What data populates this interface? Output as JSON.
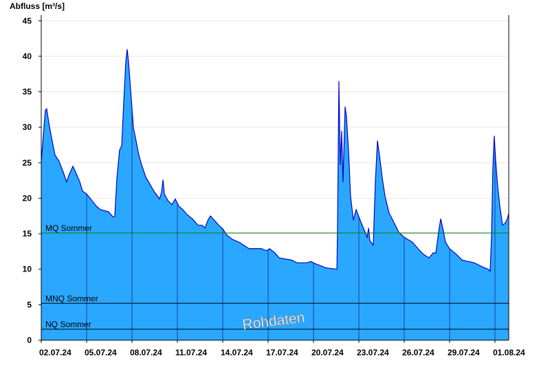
{
  "chart_data": {
    "type": "area",
    "y_label": "Abfluss [m³/s]",
    "watermark": "Rohdaten",
    "color": "#2aa8ff",
    "line_color": "#0000cc",
    "grid": true,
    "xlim": [
      0,
      30.91
    ],
    "xticks": [
      {
        "value": 0,
        "label": "02.07.24"
      },
      {
        "value": 3,
        "label": "05.07.24"
      },
      {
        "value": 6,
        "label": "08.07.24"
      },
      {
        "value": 9,
        "label": "11.07.24"
      },
      {
        "value": 12,
        "label": "14.07.24"
      },
      {
        "value": 15,
        "label": "17.07.24"
      },
      {
        "value": 18,
        "label": "20.07.24"
      },
      {
        "value": 21,
        "label": "23.07.24"
      },
      {
        "value": 24,
        "label": "26.07.24"
      },
      {
        "value": 27,
        "label": "29.07.24"
      },
      {
        "value": 30,
        "label": "01.08.24"
      }
    ],
    "ylim": [
      0,
      45.8
    ],
    "yticks": [
      0,
      5,
      10,
      15,
      20,
      25,
      30,
      35,
      40,
      45
    ],
    "reference_lines": [
      {
        "label": "MQ Sommer",
        "value": 15.1,
        "color": "#008000"
      },
      {
        "label": "MNQ Sommer",
        "value": 5.2,
        "color": "#000000"
      },
      {
        "label": "NQ Sommer",
        "value": 1.55,
        "color": "#000000"
      }
    ],
    "x": [
      0,
      0.09,
      0.27,
      0.36,
      0.55,
      0.73,
      0.91,
      1.18,
      1.45,
      1.68,
      1.82,
      2.09,
      2.27,
      2.55,
      2.73,
      3,
      3.27,
      3.64,
      3.91,
      4.45,
      4.73,
      4.86,
      5,
      5.18,
      5.32,
      5.45,
      5.59,
      5.68,
      5.77,
      5.91,
      6.09,
      6.27,
      6.45,
      6.64,
      6.91,
      7.18,
      7.45,
      7.82,
      7.95,
      8.05,
      8.14,
      8.36,
      8.64,
      8.86,
      9.09,
      9.36,
      9.64,
      10,
      10.36,
      10.64,
      10.82,
      11,
      11.18,
      11.45,
      11.73,
      12,
      12.27,
      12.64,
      13.09,
      13.45,
      13.73,
      14.55,
      14.91,
      15.09,
      15.45,
      15.73,
      16.55,
      16.91,
      17.55,
      17.82,
      18.09,
      18.82,
      19.55,
      19.59,
      19.68,
      19.77,
      19.86,
      19.95,
      20.09,
      20.18,
      20.32,
      20.45,
      20.64,
      20.82,
      21.09,
      21.36,
      21.55,
      21.64,
      21.73,
      21.95,
      22.09,
      22.23,
      22.36,
      22.55,
      22.73,
      23,
      23.27,
      23.64,
      24,
      24.55,
      24.91,
      25.27,
      25.64,
      25.91,
      26.09,
      26.27,
      26.41,
      26.55,
      26.73,
      27,
      27.45,
      27.82,
      28.64,
      29.09,
      29.55,
      29.68,
      29.77,
      29.86,
      29.95,
      30.05,
      30.18,
      30.32,
      30.5,
      30.68,
      30.82,
      30.91
    ],
    "values": [
      25.2,
      27.6,
      32.4,
      32.6,
      30,
      28,
      26.1,
      25.2,
      23.7,
      22.3,
      23.2,
      24.5,
      23.7,
      22.3,
      21,
      20.6,
      19.9,
      18.9,
      18.4,
      18.1,
      17.4,
      17.4,
      22.8,
      26.8,
      27.4,
      33.4,
      39.2,
      41,
      39.2,
      35.3,
      30,
      28.1,
      26.1,
      24.7,
      23,
      22,
      21,
      19.9,
      20.8,
      22.6,
      20.6,
      19.7,
      19.1,
      19.9,
      18.9,
      18.4,
      17.7,
      17.1,
      16.2,
      16.2,
      15.8,
      16.8,
      17.5,
      16.9,
      16.2,
      15.7,
      14.8,
      14.2,
      13.8,
      13.3,
      12.9,
      12.9,
      12.6,
      12.9,
      12.3,
      11.6,
      11.3,
      10.9,
      10.9,
      11.1,
      10.8,
      10.2,
      10,
      16,
      36.5,
      24.7,
      29.5,
      22.3,
      32.9,
      31.5,
      26.6,
      20.3,
      16.9,
      18.4,
      16.9,
      15.5,
      14.5,
      15.8,
      14,
      13.4,
      22.3,
      28.1,
      26.1,
      22.8,
      20.3,
      17.9,
      16.8,
      15.2,
      14.5,
      13.8,
      12.9,
      12.1,
      11.6,
      12.3,
      12.3,
      15.2,
      17.1,
      15.8,
      13.8,
      12.9,
      12.1,
      11.3,
      10.9,
      10.4,
      10,
      9.7,
      14.5,
      24.2,
      28.8,
      25.2,
      21.6,
      18.9,
      16.2,
      16.5,
      17.1,
      17.9
    ]
  }
}
